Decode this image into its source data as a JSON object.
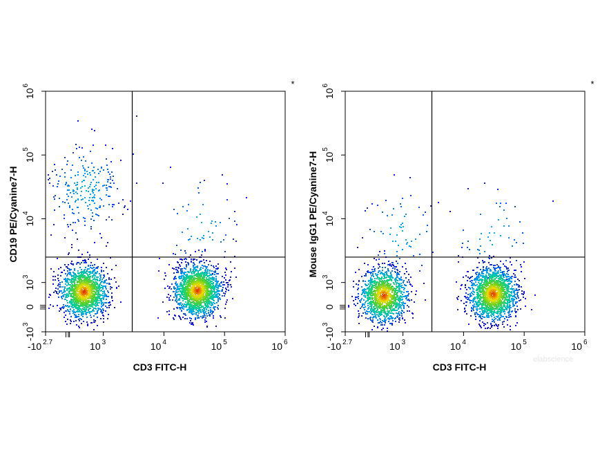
{
  "watermark": "elabscience",
  "chart_data": [
    {
      "type": "scatter",
      "subtype": "flow-cytometry-density-plot",
      "xlabel": "CD3 FITC-H",
      "ylabel": "CD19 PE/Cyanine7-H",
      "corner_mark": "*",
      "x_scale": "biexponential",
      "y_scale": "biexponential",
      "xlim": [
        -500,
        1000000
      ],
      "ylim": [
        -1000,
        1000000
      ],
      "x_ticks": [
        {
          "value": -500,
          "base": "-10",
          "exp": "2.7"
        },
        {
          "value": 1000,
          "base": "10",
          "exp": "3"
        },
        {
          "value": 10000,
          "base": "10",
          "exp": "4"
        },
        {
          "value": 100000,
          "base": "10",
          "exp": "5"
        },
        {
          "value": 1000000,
          "base": "10",
          "exp": "6"
        }
      ],
      "y_ticks": [
        {
          "value": -1000,
          "base": "-10",
          "exp": "3"
        },
        {
          "value": 0,
          "base": "0",
          "exp": ""
        },
        {
          "value": 1000,
          "base": "10",
          "exp": "3"
        },
        {
          "value": 10000,
          "base": "10",
          "exp": "4"
        },
        {
          "value": 100000,
          "base": "10",
          "exp": "5"
        },
        {
          "value": 1000000,
          "base": "10",
          "exp": "6"
        }
      ],
      "gates": {
        "x": 3000,
        "y": 2500
      },
      "populations": [
        {
          "x": 450,
          "y": 650,
          "n": 1500
        },
        {
          "x": 35000,
          "y": 700,
          "n": 1700
        },
        {
          "x": 500,
          "y": 30000,
          "n": 260
        },
        {
          "x": 40000,
          "y": 8000,
          "n": 60
        }
      ]
    },
    {
      "type": "scatter",
      "subtype": "flow-cytometry-density-plot",
      "xlabel": "CD3 FITC-H",
      "ylabel": "Mouse IgG1 PE/Cyanine7-H",
      "corner_mark": "*",
      "x_scale": "biexponential",
      "y_scale": "biexponential",
      "xlim": [
        -500,
        1000000
      ],
      "ylim": [
        -1000,
        1000000
      ],
      "x_ticks": [
        {
          "value": -500,
          "base": "-10",
          "exp": "2.7"
        },
        {
          "value": 1000,
          "base": "10",
          "exp": "3"
        },
        {
          "value": 10000,
          "base": "10",
          "exp": "4"
        },
        {
          "value": 100000,
          "base": "10",
          "exp": "5"
        },
        {
          "value": 1000000,
          "base": "10",
          "exp": "6"
        }
      ],
      "y_ticks": [
        {
          "value": -1000,
          "base": "-10",
          "exp": "3"
        },
        {
          "value": 0,
          "base": "0",
          "exp": ""
        },
        {
          "value": 1000,
          "base": "10",
          "exp": "3"
        },
        {
          "value": 10000,
          "base": "10",
          "exp": "4"
        },
        {
          "value": 100000,
          "base": "10",
          "exp": "5"
        },
        {
          "value": 1000000,
          "base": "10",
          "exp": "6"
        }
      ],
      "gates": {
        "x": 3000,
        "y": 2500
      },
      "populations": [
        {
          "x": 450,
          "y": 500,
          "n": 1300
        },
        {
          "x": 30000,
          "y": 550,
          "n": 1700
        },
        {
          "x": 900,
          "y": 6000,
          "n": 70
        },
        {
          "x": 30000,
          "y": 6000,
          "n": 60
        }
      ]
    }
  ]
}
